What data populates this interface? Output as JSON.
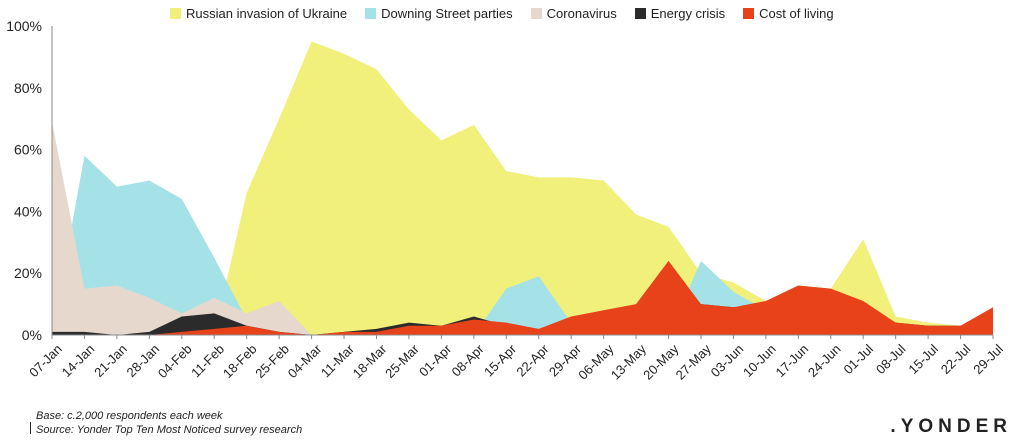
{
  "chart_data": {
    "type": "area",
    "title": "",
    "xlabel": "",
    "ylabel": "",
    "ylim": [
      0,
      100
    ],
    "yticks": [
      "0%",
      "20%",
      "40%",
      "60%",
      "80%",
      "100%"
    ],
    "ytick_values": [
      0,
      20,
      40,
      60,
      80,
      100
    ],
    "categories": [
      "07-Jan",
      "14-Jan",
      "21-Jan",
      "28-Jan",
      "04-Feb",
      "11-Feb",
      "18-Feb",
      "25-Feb",
      "04-Mar",
      "11-Mar",
      "18-Mar",
      "25-Mar",
      "01-Apr",
      "08-Apr",
      "15-Apr",
      "22-Apr",
      "29-Apr",
      "06-May",
      "13-May",
      "20-May",
      "27-May",
      "03-Jun",
      "10-Jun",
      "17-Jun",
      "24-Jun",
      "01-Jul",
      "08-Jul",
      "15-Jul",
      "22-Jul",
      "29-Jul"
    ],
    "legend_position": "top",
    "grid": false,
    "series": [
      {
        "name": "Russian invasion of Ukraine",
        "color": "#f0f07a",
        "values": [
          0,
          0,
          0,
          0,
          0,
          0,
          46,
          70,
          95,
          91,
          86,
          73,
          63,
          68,
          53,
          51,
          51,
          50,
          39,
          35,
          20,
          17,
          11,
          16,
          15,
          31,
          6,
          4,
          3,
          3
        ]
      },
      {
        "name": "Downing Street parties",
        "color": "#a4e2e8",
        "values": [
          0,
          58,
          48,
          50,
          44,
          25,
          5,
          0,
          0,
          0,
          0,
          0,
          0,
          0,
          15,
          19,
          4,
          0,
          0,
          0,
          24,
          14,
          8,
          0,
          0,
          0,
          0,
          0,
          0,
          0
        ]
      },
      {
        "name": "Coronavirus",
        "color": "#e6d8cd",
        "values": [
          69,
          15,
          16,
          12,
          7,
          12,
          7,
          11,
          0,
          0,
          0,
          0,
          0,
          0,
          0,
          0,
          0,
          0,
          0,
          0,
          0,
          0,
          0,
          0,
          0,
          0,
          0,
          0,
          0,
          0
        ]
      },
      {
        "name": "Energy crisis",
        "color": "#2b2b2b",
        "values": [
          1,
          1,
          0,
          1,
          6,
          7,
          3,
          1,
          0,
          1,
          2,
          4,
          3,
          6,
          3,
          1,
          3,
          6,
          8,
          10,
          10,
          9,
          9,
          14,
          13,
          10,
          4,
          3,
          3,
          7
        ]
      },
      {
        "name": "Cost of living",
        "color": "#e8421a",
        "values": [
          0,
          0,
          0,
          0,
          1,
          2,
          3,
          1,
          0,
          1,
          1,
          3,
          3,
          5,
          4,
          2,
          6,
          8,
          10,
          24,
          10,
          9,
          11,
          16,
          15,
          11,
          4,
          3,
          3,
          9
        ]
      }
    ]
  },
  "footnotes": {
    "base": "Base: c.2,000 respondents each week",
    "source": "Source: Yonder Top Ten Most Noticed survey research"
  },
  "logo_text": ".YONDER"
}
